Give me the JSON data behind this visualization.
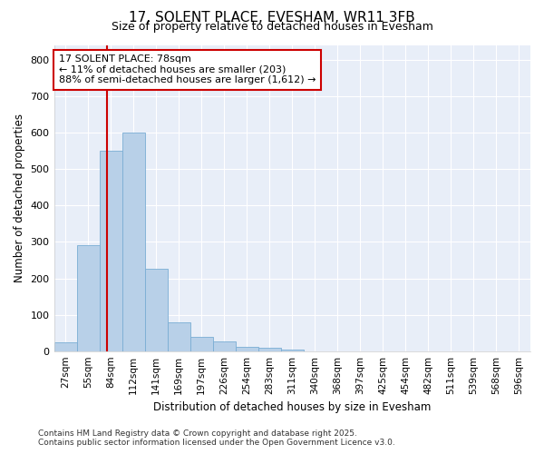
{
  "title_line1": "17, SOLENT PLACE, EVESHAM, WR11 3FB",
  "title_line2": "Size of property relative to detached houses in Evesham",
  "xlabel": "Distribution of detached houses by size in Evesham",
  "ylabel": "Number of detached properties",
  "footer_line1": "Contains HM Land Registry data © Crown copyright and database right 2025.",
  "footer_line2": "Contains public sector information licensed under the Open Government Licence v3.0.",
  "bin_labels": [
    "27sqm",
    "55sqm",
    "84sqm",
    "112sqm",
    "141sqm",
    "169sqm",
    "197sqm",
    "226sqm",
    "254sqm",
    "283sqm",
    "311sqm",
    "340sqm",
    "368sqm",
    "397sqm",
    "425sqm",
    "454sqm",
    "482sqm",
    "511sqm",
    "539sqm",
    "568sqm",
    "596sqm"
  ],
  "bar_heights": [
    25,
    290,
    550,
    600,
    225,
    80,
    38,
    27,
    12,
    8,
    5,
    0,
    0,
    0,
    0,
    0,
    0,
    0,
    0,
    0,
    0
  ],
  "bar_color": "#b8d0e8",
  "bar_edge_color": "#7aadd4",
  "background_color": "#ffffff",
  "plot_bg_color": "#e8eef8",
  "grid_color": "#ffffff",
  "vline_color": "#cc0000",
  "annotation_text": "17 SOLENT PLACE: 78sqm\n← 11% of detached houses are smaller (203)\n88% of semi-detached houses are larger (1,612) →",
  "annotation_box_color": "#ffffff",
  "annotation_box_edge": "#cc0000",
  "ylim": [
    0,
    840
  ],
  "yticks": [
    0,
    100,
    200,
    300,
    400,
    500,
    600,
    700,
    800
  ],
  "title_fontsize": 11,
  "subtitle_fontsize": 9,
  "footer_fontsize": 6.5
}
